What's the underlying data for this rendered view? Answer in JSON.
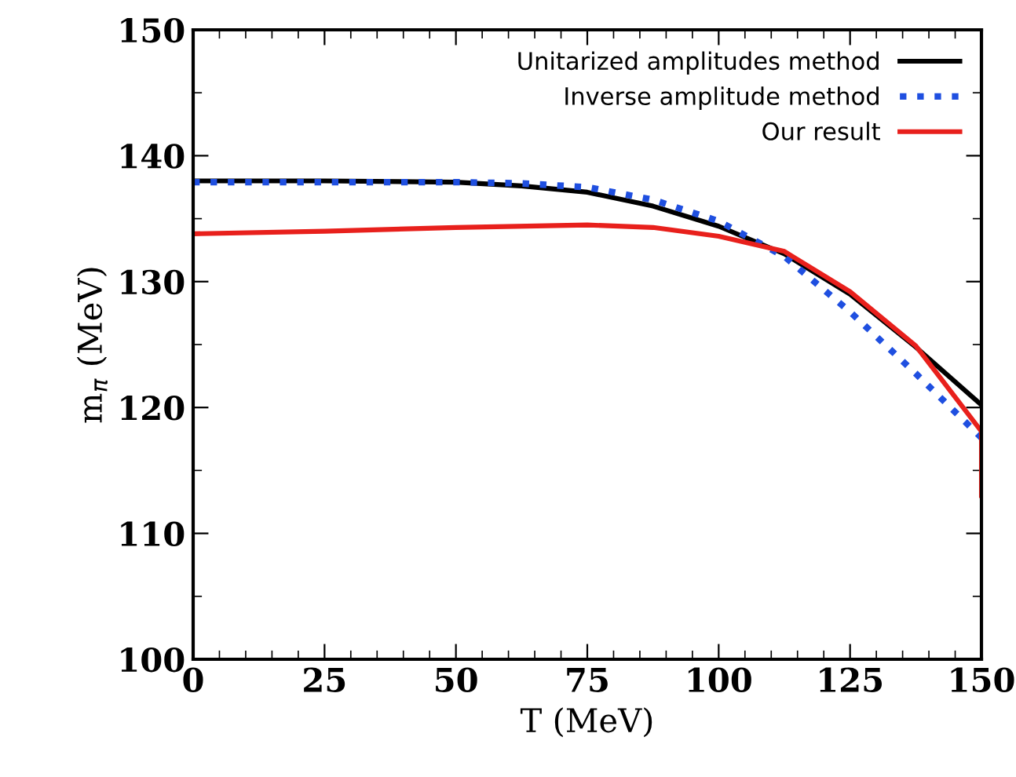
{
  "chart_data": {
    "type": "line",
    "xlabel": "T (MeV)",
    "ylabel": "m$_{π}$ (MeV)",
    "xlim": [
      0,
      150
    ],
    "xticks": [
      0,
      25,
      50,
      75,
      100,
      125,
      150
    ],
    "ylim": [
      100,
      150
    ],
    "yticks": [
      100,
      110,
      120,
      130,
      140,
      150
    ],
    "grid": false,
    "legend": "top right",
    "marker": "none",
    "series": [
      {
        "name": "Unitarized amplitudes method",
        "color": "#000000",
        "line_style": "solid",
        "x": [
          0,
          25,
          50,
          62.5,
          75,
          87.5,
          100,
          112.5,
          125,
          137.5,
          150
        ],
        "values": [
          138.0,
          138.0,
          137.9,
          137.6,
          137.1,
          136.0,
          134.4,
          132.2,
          129.0,
          124.8,
          120.2
        ]
      },
      {
        "name": "Inverse amplitude method",
        "color": "#1f4fe0",
        "line_style": "dotted",
        "x": [
          0,
          25,
          50,
          62.5,
          75,
          87.5,
          100,
          112.5,
          125,
          137.5,
          150
        ],
        "values": [
          137.9,
          137.9,
          137.9,
          137.8,
          137.5,
          136.5,
          134.8,
          132.0,
          127.6,
          122.7,
          117.6
        ]
      },
      {
        "name": "Our result",
        "color": "#e8201c",
        "line_style": "solid",
        "x": [
          0,
          25,
          50,
          75,
          87.5,
          100,
          112.5,
          125,
          137.5,
          150,
          150
        ],
        "values": [
          133.8,
          134.0,
          134.3,
          134.5,
          134.3,
          133.6,
          132.4,
          129.2,
          124.9,
          118.1,
          113.0
        ]
      }
    ]
  }
}
